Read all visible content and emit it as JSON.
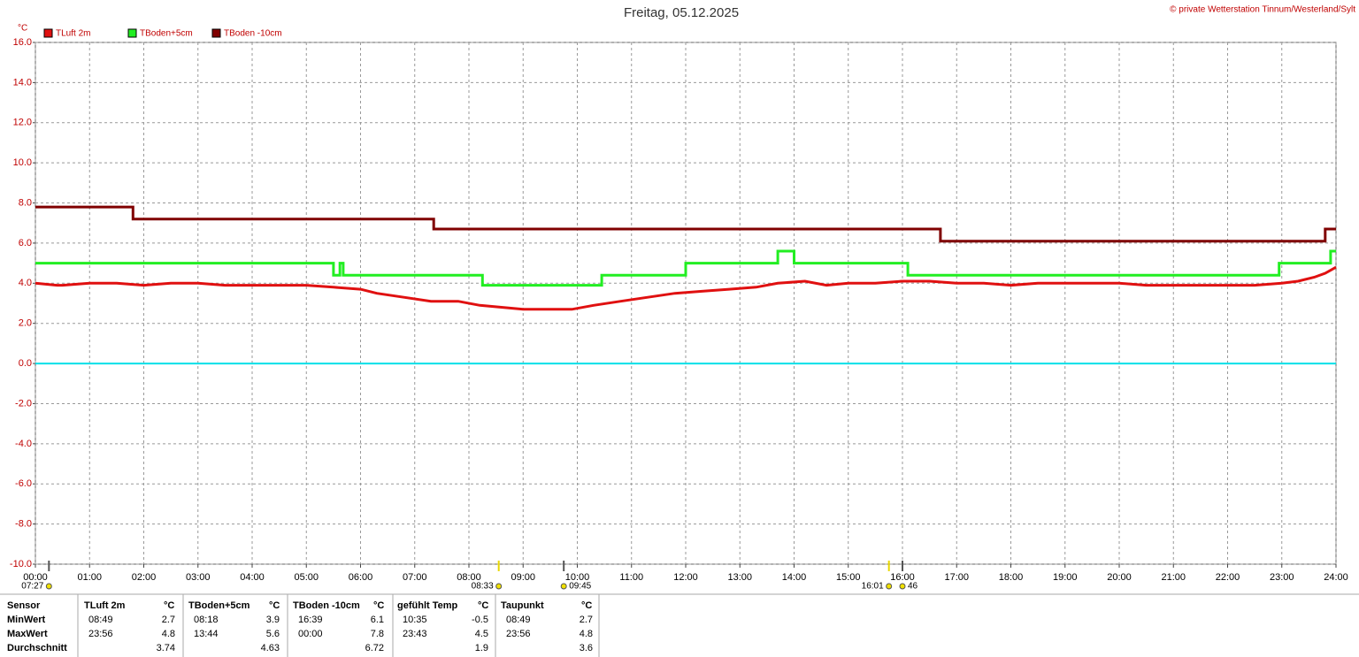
{
  "chart_data": {
    "type": "line",
    "title": "Freitag, 05.12.2025",
    "credit": "© private Wetterstation Tinnum/Westerland/Sylt",
    "y_unit": "°C",
    "xlim": [
      0,
      24
    ],
    "xticks": [
      {
        "value": 0,
        "label": "00:00"
      },
      {
        "value": 1,
        "label": "01:00"
      },
      {
        "value": 2,
        "label": "02:00"
      },
      {
        "value": 3,
        "label": "03:00"
      },
      {
        "value": 4,
        "label": "04:00"
      },
      {
        "value": 5,
        "label": "05:00"
      },
      {
        "value": 6,
        "label": "06:00"
      },
      {
        "value": 7,
        "label": "07:00"
      },
      {
        "value": 8,
        "label": "08:00"
      },
      {
        "value": 9,
        "label": "09:00"
      },
      {
        "value": 10,
        "label": "10:00"
      },
      {
        "value": 11,
        "label": "11:00"
      },
      {
        "value": 12,
        "label": "12:00"
      },
      {
        "value": 13,
        "label": "13:00"
      },
      {
        "value": 14,
        "label": "14:00"
      },
      {
        "value": 15,
        "label": "15:00"
      },
      {
        "value": 16,
        "label": "16:00"
      },
      {
        "value": 17,
        "label": "17:00"
      },
      {
        "value": 18,
        "label": "18:00"
      },
      {
        "value": 19,
        "label": "19:00"
      },
      {
        "value": 20,
        "label": "20:00"
      },
      {
        "value": 21,
        "label": "21:00"
      },
      {
        "value": 22,
        "label": "22:00"
      },
      {
        "value": 23,
        "label": "23:00"
      },
      {
        "value": 24,
        "label": "24:00"
      }
    ],
    "ylim": [
      -10,
      16
    ],
    "yticks": [
      {
        "value": 16,
        "label": "16.0"
      },
      {
        "value": 14,
        "label": "14.0"
      },
      {
        "value": 12,
        "label": "12.0"
      },
      {
        "value": 10,
        "label": "10.0"
      },
      {
        "value": 8,
        "label": "8.0"
      },
      {
        "value": 6,
        "label": "6.0"
      },
      {
        "value": 4,
        "label": "4.0"
      },
      {
        "value": 2,
        "label": "2.0"
      },
      {
        "value": 0,
        "label": "0.0"
      },
      {
        "value": -2,
        "label": "-2.0"
      },
      {
        "value": -4,
        "label": "-4.0"
      },
      {
        "value": -6,
        "label": "-6.0"
      },
      {
        "value": -8,
        "label": "-8.0"
      },
      {
        "value": -10,
        "label": "-10.0"
      }
    ],
    "grid": true,
    "zero_line": {
      "value": 0,
      "color": "#00e0e8"
    },
    "series": [
      {
        "name": "TLuft 2m",
        "color": "#e01010",
        "x": [
          0,
          0.4,
          0.5,
          1,
          1.5,
          2,
          2.5,
          3,
          3.5,
          4,
          4.5,
          5,
          5.5,
          6,
          6.3,
          6.8,
          7.3,
          7.8,
          8.2,
          8.6,
          9,
          9.5,
          9.9,
          10.3,
          10.8,
          11.3,
          11.8,
          12.3,
          12.8,
          13.3,
          13.7,
          14.2,
          14.6,
          15,
          15.5,
          16,
          16.5,
          17,
          17.5,
          18,
          18.5,
          19,
          19.5,
          20,
          20.5,
          21,
          21.5,
          22,
          22.5,
          23,
          23.3,
          23.6,
          23.8,
          24
        ],
        "values": [
          4.0,
          3.9,
          3.9,
          4.0,
          4.0,
          3.9,
          4.0,
          4.0,
          3.9,
          3.9,
          3.9,
          3.9,
          3.8,
          3.7,
          3.5,
          3.3,
          3.1,
          3.1,
          2.9,
          2.8,
          2.7,
          2.7,
          2.7,
          2.9,
          3.1,
          3.3,
          3.5,
          3.6,
          3.7,
          3.8,
          4.0,
          4.1,
          3.9,
          4.0,
          4.0,
          4.1,
          4.1,
          4.0,
          4.0,
          3.9,
          4.0,
          4.0,
          4.0,
          4.0,
          3.9,
          3.9,
          3.9,
          3.9,
          3.9,
          4.0,
          4.1,
          4.3,
          4.5,
          4.8
        ]
      },
      {
        "name": "TBoden+5cm",
        "color": "#22ee22",
        "x": [
          0,
          5.5,
          5.5,
          5.62,
          5.62,
          5.68,
          5.68,
          8.25,
          8.25,
          10.45,
          10.45,
          12.0,
          12.0,
          13.7,
          13.7,
          14.0,
          14.0,
          16.1,
          16.1,
          22.95,
          22.95,
          23.9,
          23.9,
          24
        ],
        "values": [
          5.0,
          5.0,
          4.4,
          4.4,
          5.0,
          5.0,
          4.4,
          4.4,
          3.9,
          3.9,
          4.4,
          4.4,
          5.0,
          5.0,
          5.6,
          5.6,
          5.0,
          5.0,
          4.4,
          4.4,
          5.0,
          5.0,
          5.6,
          5.6
        ]
      },
      {
        "name": "TBoden -10cm",
        "color": "#800000",
        "x": [
          0,
          1.8,
          1.8,
          7.35,
          7.35,
          16.7,
          16.7,
          23.8,
          23.8,
          24
        ],
        "values": [
          7.8,
          7.8,
          7.2,
          7.2,
          6.7,
          6.7,
          6.1,
          6.1,
          6.7,
          6.7
        ]
      }
    ],
    "annotations": [
      {
        "x": 0.25,
        "label": "07:27"
      },
      {
        "x": 8.55,
        "label": "08:33"
      },
      {
        "x": 9.75,
        "label": "09:45"
      },
      {
        "x": 15.75,
        "label": "16:01"
      },
      {
        "x": 16.0,
        "label": "46"
      }
    ]
  },
  "table": {
    "header": [
      "Sensor",
      "TLuft 2m",
      "°C",
      "TBoden+5cm",
      "°C",
      "TBoden -10cm",
      "°C",
      "gefühlt Temp",
      "°C",
      "Taupunkt",
      "°C"
    ],
    "rows": [
      {
        "label": "MinWert",
        "cells": [
          [
            "08:49",
            "2.7"
          ],
          [
            "08:18",
            "3.9"
          ],
          [
            "16:39",
            "6.1"
          ],
          [
            "10:35",
            "-0.5"
          ],
          [
            "08:49",
            "2.7"
          ]
        ]
      },
      {
        "label": "MaxWert",
        "cells": [
          [
            "23:56",
            "4.8"
          ],
          [
            "13:44",
            "5.6"
          ],
          [
            "00:00",
            "7.8"
          ],
          [
            "23:43",
            "4.5"
          ],
          [
            "23:56",
            "4.8"
          ]
        ]
      },
      {
        "label": "Durchschnitt",
        "cells": [
          [
            null,
            "3.74"
          ],
          [
            null,
            "4.63"
          ],
          [
            null,
            "6.72"
          ],
          [
            null,
            "1.9"
          ],
          [
            null,
            "3.6"
          ]
        ]
      }
    ]
  }
}
